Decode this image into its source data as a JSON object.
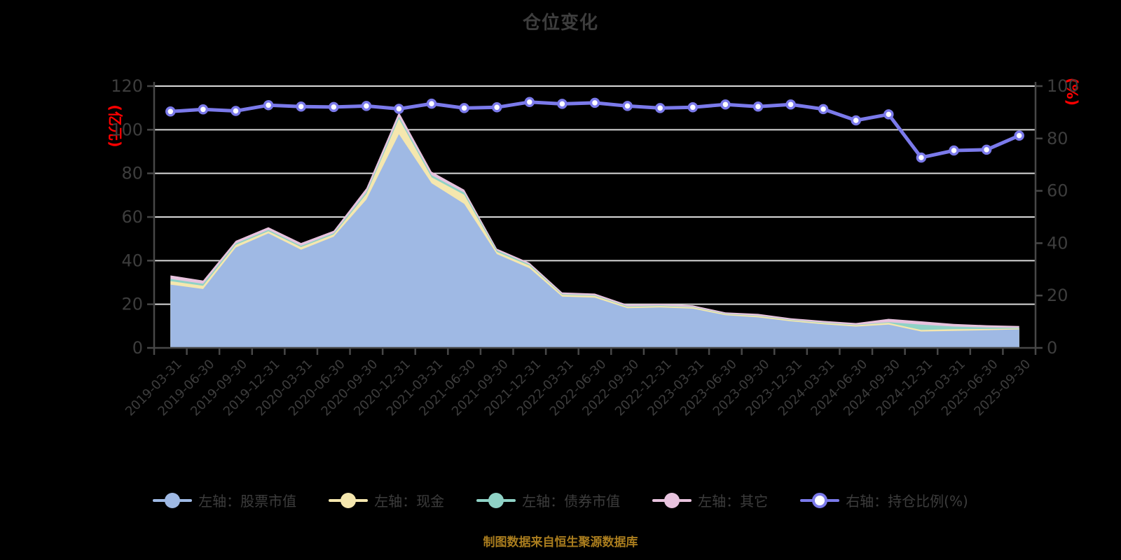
{
  "title": "仓位变化",
  "left_axis_unit": "(亿元)",
  "right_axis_unit": "(%)",
  "source_note": "制图数据来自恒生聚源数据库",
  "colors": {
    "background": "#000000",
    "text": "#3d3d3d",
    "grid": "#d9d9d9",
    "spine": "#474747",
    "axis_unit_red": "#ff0000",
    "source_note_gold": "#aa7d1e",
    "stock_blue": "#9fb9e4",
    "cash_yellow": "#f5e7ae",
    "bond_teal": "#8fd2c6",
    "other_pink": "#e8c3de",
    "ratio_purple": "#7b7aeb",
    "marker_fill": "#ffffff"
  },
  "legend": {
    "items": [
      {
        "label": "左轴：股票市值",
        "color": "#9fb9e4",
        "marker": "filled"
      },
      {
        "label": "左轴：现金",
        "color": "#f5e7ae",
        "marker": "filled"
      },
      {
        "label": "左轴：债券市值",
        "color": "#8fd2c6",
        "marker": "filled"
      },
      {
        "label": "左轴：其它",
        "color": "#e8c3de",
        "marker": "filled"
      },
      {
        "label": "右轴：持仓比例(%)",
        "color": "#7b7aeb",
        "marker": "hollow"
      }
    ]
  },
  "chart_data": {
    "type": "area",
    "title": "仓位变化",
    "grid": true,
    "legend_position": "bottom",
    "x": [
      "2019-03-31",
      "2019-06-30",
      "2019-09-30",
      "2019-12-31",
      "2020-03-31",
      "2020-06-30",
      "2020-09-30",
      "2020-12-31",
      "2021-03-31",
      "2021-06-30",
      "2021-09-30",
      "2021-12-31",
      "2022-03-31",
      "2022-06-30",
      "2022-09-30",
      "2022-12-31",
      "2023-03-31",
      "2023-06-30",
      "2023-09-30",
      "2023-12-31",
      "2024-03-31",
      "2024-06-30",
      "2024-09-30",
      "2024-12-31",
      "2025-03-31",
      "2025-06-30",
      "2025-09-30"
    ],
    "left_axis": {
      "label": "(亿元)",
      "min": 0,
      "max": 120,
      "ticks": [
        0,
        20,
        40,
        60,
        80,
        100,
        120
      ]
    },
    "right_axis": {
      "label": "(%)",
      "min": 0,
      "max": 100,
      "ticks": [
        0,
        20,
        40,
        60,
        80,
        100
      ]
    },
    "series": [
      {
        "name": "左轴：股票市值",
        "axis": "left",
        "render": "stacked-area",
        "color": "#9fb9e4",
        "values": [
          29,
          27,
          46,
          52.5,
          45,
          51,
          68,
          98,
          75.5,
          66,
          43,
          36.5,
          23.5,
          23,
          18.2,
          18.5,
          18,
          15,
          14,
          12.2,
          10.8,
          9.8,
          10.7,
          7.5,
          7.8,
          8.1,
          8.5
        ]
      },
      {
        "name": "左轴：现金",
        "axis": "left",
        "render": "stacked-area",
        "color": "#f5e7ae",
        "values": [
          1.6,
          1.5,
          1.2,
          1,
          1.2,
          1,
          2.5,
          7,
          2.7,
          4.2,
          1,
          1.2,
          0.8,
          0.8,
          0.6,
          0.7,
          0.6,
          0.5,
          0.6,
          0.5,
          0.6,
          0.6,
          0.8,
          0.7,
          0.8,
          0.6,
          0.4
        ]
      },
      {
        "name": "左轴：债券市值",
        "axis": "left",
        "render": "stacked-area",
        "color": "#8fd2c6",
        "values": [
          1,
          0.9,
          0.7,
          0.6,
          0.6,
          0.6,
          0.9,
          1,
          1,
          1,
          0.7,
          0.5,
          0.3,
          0.3,
          0.3,
          0.3,
          0.2,
          0.2,
          0.2,
          0.2,
          0.2,
          0.2,
          0.3,
          2.5,
          1.2,
          0.7,
          0.3
        ]
      },
      {
        "name": "左轴：其它",
        "axis": "left",
        "render": "stacked-area",
        "color": "#e8c3de",
        "values": [
          1.6,
          1.5,
          1.2,
          1.2,
          1.3,
          1.1,
          1.8,
          2,
          1.6,
          1.3,
          0.8,
          0.8,
          0.8,
          0.8,
          0.7,
          0.7,
          0.7,
          0.6,
          0.8,
          0.7,
          0.8,
          0.8,
          1.5,
          1.5,
          1.2,
          1,
          0.8
        ]
      },
      {
        "name": "右轴：持仓比例(%)",
        "axis": "right",
        "render": "line",
        "color": "#7b7aeb",
        "values": [
          90.3,
          91.1,
          90.5,
          92.7,
          92.2,
          92,
          92.4,
          91.3,
          93.3,
          91.6,
          91.9,
          93.9,
          93.2,
          93.6,
          92.4,
          91.6,
          91.9,
          93,
          92.2,
          93,
          91.2,
          86.9,
          89.2,
          72.7,
          75.4,
          75.7,
          81.1
        ]
      }
    ]
  }
}
